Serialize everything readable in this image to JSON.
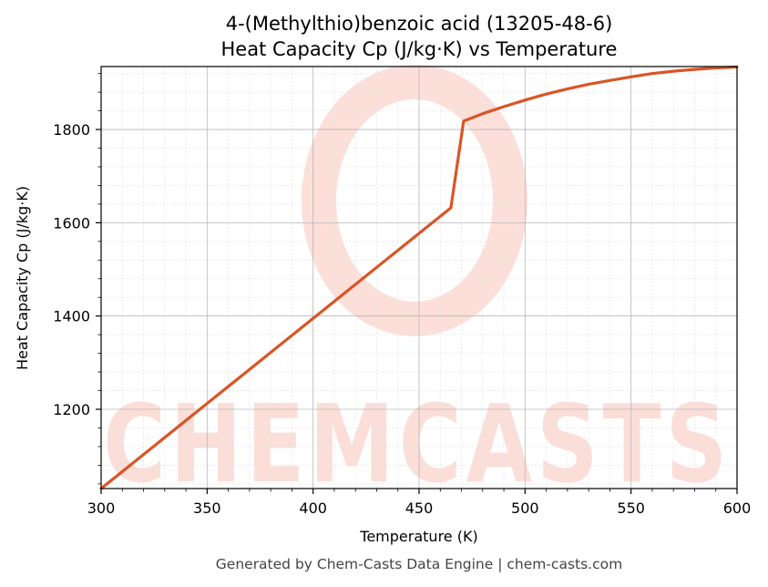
{
  "chart_data": {
    "type": "line",
    "title": [
      "4-(Methylthio)benzoic acid (13205-48-6)",
      "Heat Capacity Cp (J/kg·K) vs Temperature"
    ],
    "xlabel": "Temperature (K)",
    "ylabel": "Heat Capacity Cp (J/kg·K)",
    "xlim": [
      300,
      600
    ],
    "ylim": [
      1030,
      1935
    ],
    "xticks": [
      300,
      350,
      400,
      450,
      500,
      550,
      600
    ],
    "yticks": [
      1200,
      1400,
      1600,
      1800
    ],
    "grid": true,
    "line_color": "#d95525",
    "series": [
      {
        "x": [
          300,
          465,
          471,
          480,
          490,
          500,
          510,
          520,
          530,
          540,
          550,
          560,
          570,
          580,
          590,
          600
        ],
        "y": [
          1030,
          1632,
          1818,
          1834,
          1849,
          1863,
          1876,
          1887,
          1897,
          1905,
          1913,
          1920,
          1925,
          1929,
          1932,
          1934
        ]
      }
    ]
  },
  "watermark": {
    "text": "CHEMCASTS",
    "color": "#fbd9d2"
  },
  "footer": "Generated by Chem-Casts Data Engine | chem-casts.com"
}
